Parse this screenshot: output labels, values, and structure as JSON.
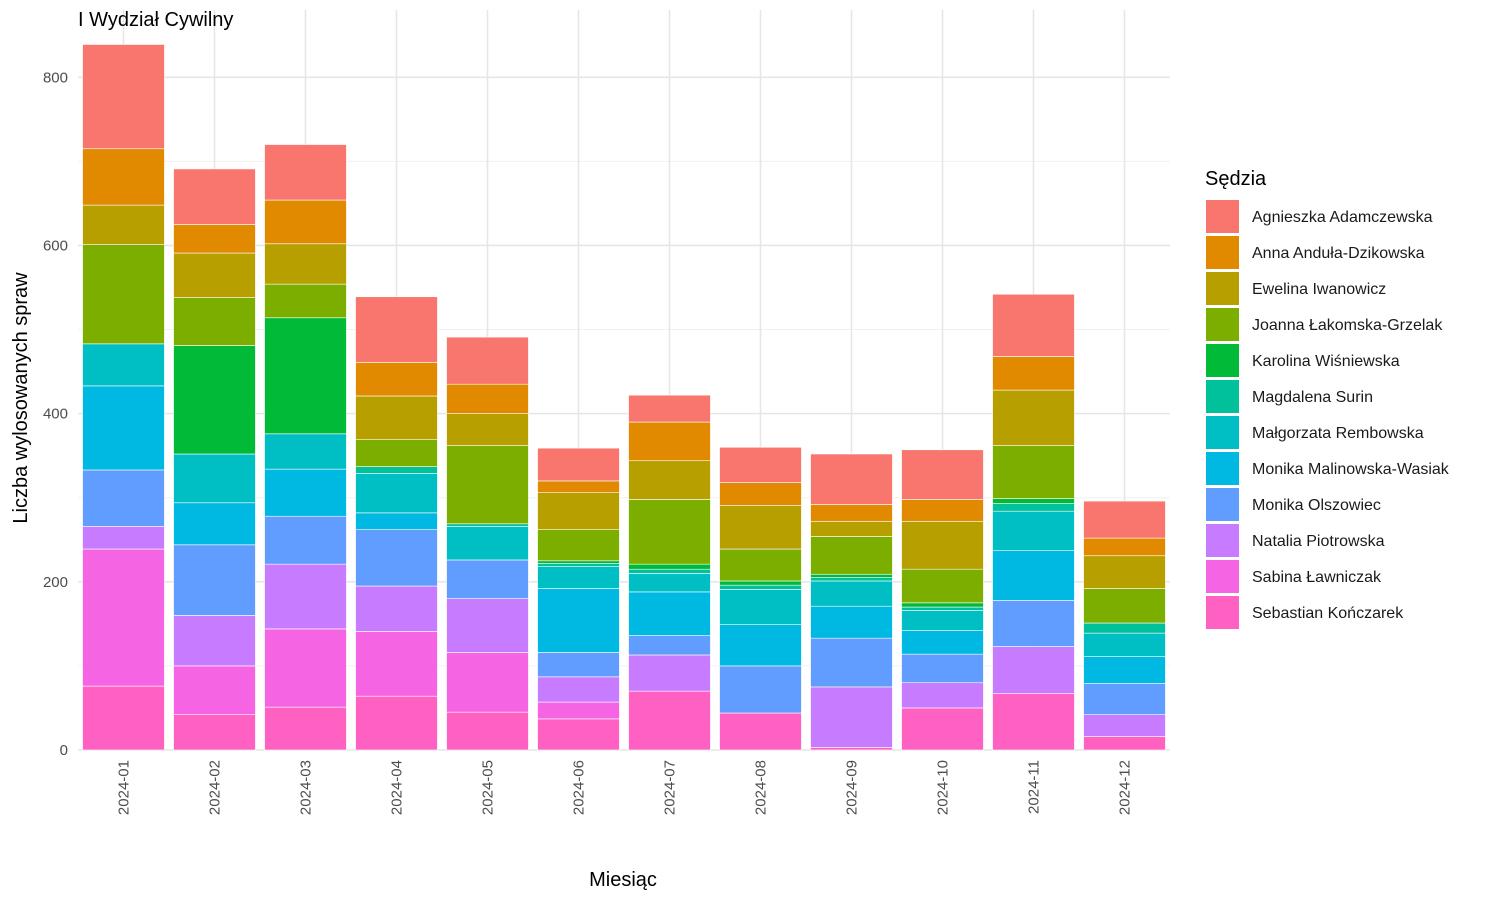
{
  "chart_data": {
    "type": "bar",
    "stacked": true,
    "title": "I Wydział Cywilny",
    "xlabel": "Miesiąc",
    "ylabel": "Liczba wylosowanych spraw",
    "ylim": [
      0,
      850
    ],
    "yticks": [
      0,
      200,
      400,
      600,
      800
    ],
    "grid": true,
    "legend_title": "Sędzia",
    "legend_position": "right",
    "categories": [
      "2024-01",
      "2024-02",
      "2024-03",
      "2024-04",
      "2024-05",
      "2024-06",
      "2024-07",
      "2024-08",
      "2024-09",
      "2024-10",
      "2024-11",
      "2024-12"
    ],
    "series": [
      {
        "name": "Sebastian Kończarek",
        "color": "#FF61C3",
        "values": [
          76,
          42,
          51,
          64,
          45,
          37,
          70,
          44,
          3,
          50,
          67,
          16
        ]
      },
      {
        "name": "Sabina Ławniczak",
        "color": "#F564E3",
        "values": [
          163,
          58,
          93,
          77,
          71,
          20,
          0,
          0,
          0,
          0,
          0,
          0
        ]
      },
      {
        "name": "Natalia Piotrowska",
        "color": "#C77CFF",
        "values": [
          27,
          60,
          77,
          54,
          64,
          30,
          43,
          0,
          72,
          30,
          56,
          26
        ]
      },
      {
        "name": "Monika Olszowiec",
        "color": "#619CFF",
        "values": [
          67,
          84,
          57,
          67,
          46,
          29,
          23,
          56,
          58,
          34,
          55,
          37
        ]
      },
      {
        "name": "Monika Malinowska-Wasiak",
        "color": "#00B9E3",
        "values": [
          100,
          50,
          56,
          20,
          0,
          76,
          52,
          49,
          38,
          28,
          59,
          32
        ]
      },
      {
        "name": "Małgorzata Rembowska",
        "color": "#00BFC4",
        "values": [
          50,
          58,
          42,
          47,
          40,
          26,
          22,
          42,
          30,
          24,
          47,
          28
        ]
      },
      {
        "name": "Magdalena Surin",
        "color": "#00C19A",
        "values": [
          0,
          0,
          0,
          8,
          3,
          4,
          5,
          5,
          4,
          4,
          9,
          12
        ]
      },
      {
        "name": "Karolina Wiśniewska",
        "color": "#00BA38",
        "values": [
          0,
          129,
          138,
          0,
          0,
          3,
          6,
          5,
          4,
          5,
          6,
          0
        ]
      },
      {
        "name": "Joanna Łakomska-Grzelak",
        "color": "#7CAE00",
        "values": [
          118,
          57,
          40,
          32,
          93,
          37,
          77,
          38,
          45,
          40,
          63,
          41
        ]
      },
      {
        "name": "Ewelina Iwanowicz",
        "color": "#B79F00",
        "values": [
          47,
          53,
          48,
          52,
          38,
          44,
          46,
          52,
          18,
          57,
          66,
          39
        ]
      },
      {
        "name": "Anna Anduła-Dzikowska",
        "color": "#E18A00",
        "values": [
          67,
          34,
          52,
          40,
          35,
          14,
          46,
          27,
          20,
          26,
          40,
          21
        ]
      },
      {
        "name": "Agnieszka Adamczewska",
        "color": "#F8766D",
        "values": [
          124,
          66,
          66,
          78,
          56,
          39,
          32,
          42,
          60,
          59,
          74,
          44
        ]
      }
    ],
    "legend_order": [
      "Agnieszka Adamczewska",
      "Anna Anduła-Dzikowska",
      "Ewelina Iwanowicz",
      "Joanna Łakomska-Grzelak",
      "Karolina Wiśniewska",
      "Magdalena Surin",
      "Małgorzata Rembowska",
      "Monika Malinowska-Wasiak",
      "Monika Olszowiec",
      "Natalia Piotrowska",
      "Sabina Ławniczak",
      "Sebastian Kończarek"
    ]
  }
}
